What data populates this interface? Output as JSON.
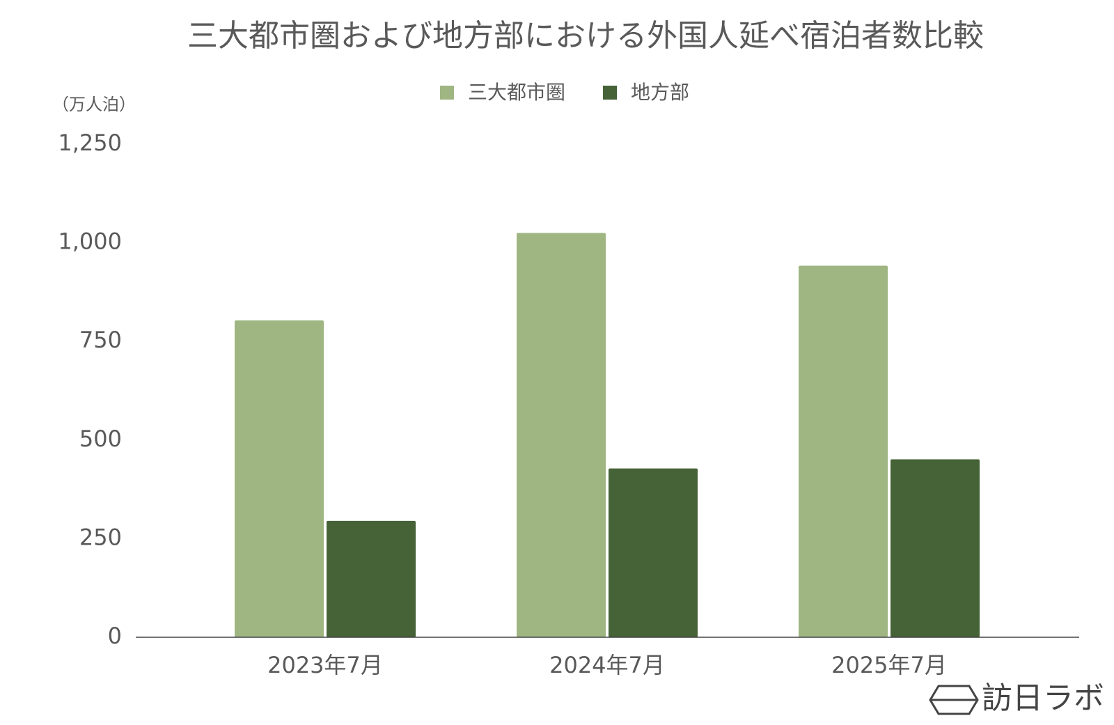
{
  "chart_data": {
    "type": "bar",
    "title": "三大都市圏および地方部における外国人延べ宿泊者数比較",
    "y_axis_label": "（万人泊）",
    "categories": [
      "2023年7月",
      "2024年7月",
      "2025年7月"
    ],
    "series": [
      {
        "name": "三大都市圏",
        "color": "#9fb682",
        "values": [
          803,
          1025,
          942
        ]
      },
      {
        "name": "地方部",
        "color": "#466237",
        "values": [
          295,
          428,
          451
        ]
      }
    ],
    "ylim": [
      0,
      1250
    ],
    "yticks": [
      0,
      250,
      500,
      750,
      {
        "value": 1000,
        "label": "1,000"
      },
      {
        "value": 1250,
        "label": "1,250"
      }
    ],
    "grid": false,
    "legend": "top",
    "watermark": "訪日ラボ"
  }
}
